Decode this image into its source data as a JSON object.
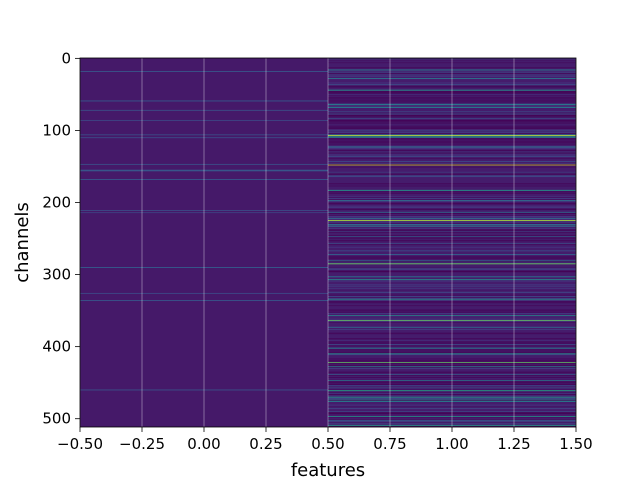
{
  "chart_data": {
    "type": "heatmap",
    "title": "",
    "xlabel": "features",
    "ylabel": "channels",
    "xlim": [
      -0.5,
      1.5
    ],
    "ylim": [
      511.5,
      -0.5
    ],
    "x_ticks": [
      -0.5,
      -0.25,
      0.0,
      0.25,
      0.5,
      0.75,
      1.0,
      1.25,
      1.5
    ],
    "x_tick_labels": [
      "−0.50",
      "−0.25",
      "0.00",
      "0.25",
      "0.50",
      "0.75",
      "1.00",
      "1.25",
      "1.50"
    ],
    "y_ticks": [
      0,
      100,
      200,
      300,
      400,
      500
    ],
    "y_tick_labels": [
      "0",
      "100",
      "200",
      "300",
      "400",
      "500"
    ],
    "grid": true,
    "colormap": "viridis",
    "colormap_stops": [
      "#440154",
      "#46327e",
      "#365c8d",
      "#277f8e",
      "#1fa187",
      "#4ac16d",
      "#a0da39",
      "#fde725"
    ],
    "columns": [
      0,
      1
    ],
    "rows": 512,
    "column_summary": [
      {
        "column": 0,
        "typical_level": 0.07,
        "max_level": 0.3
      },
      {
        "column": 1,
        "typical_level": 0.08,
        "max_level": 1.0
      }
    ]
  }
}
